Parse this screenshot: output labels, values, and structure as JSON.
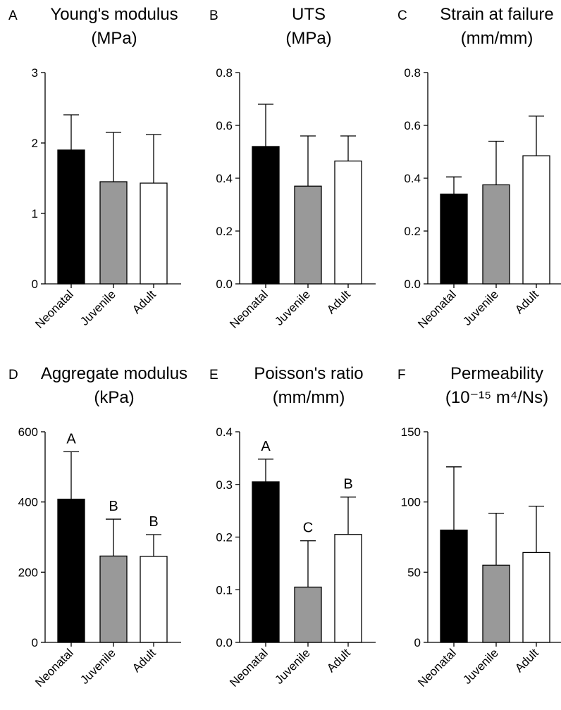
{
  "chart_data": [
    {
      "type": "bar",
      "panel": "A",
      "title": [
        "Young's modulus",
        "(MPa)"
      ],
      "categories": [
        "Neonatal",
        "Juvenile",
        "Adult"
      ],
      "values": [
        1.9,
        1.45,
        1.43
      ],
      "error": [
        0.5,
        0.7,
        0.69
      ],
      "ylim": [
        0,
        3
      ],
      "yticks": [
        0,
        1,
        2,
        3
      ],
      "ytick_labels": [
        "0",
        "1",
        "2",
        "3"
      ],
      "colors": [
        "#000000",
        "#999999",
        "#ffffff"
      ]
    },
    {
      "type": "bar",
      "panel": "B",
      "title": [
        "UTS",
        "(MPa)"
      ],
      "categories": [
        "Neonatal",
        "Juvenile",
        "Adult"
      ],
      "values": [
        0.52,
        0.37,
        0.465
      ],
      "error": [
        0.16,
        0.19,
        0.095
      ],
      "ylim": [
        0,
        0.8
      ],
      "yticks": [
        0,
        0.2,
        0.4,
        0.6,
        0.8
      ],
      "ytick_labels": [
        "0.0",
        "0.2",
        "0.4",
        "0.6",
        "0.8"
      ],
      "colors": [
        "#000000",
        "#999999",
        "#ffffff"
      ]
    },
    {
      "type": "bar",
      "panel": "C",
      "title": [
        "Strain at failure",
        "(mm/mm)"
      ],
      "categories": [
        "Neonatal",
        "Juvenile",
        "Adult"
      ],
      "values": [
        0.34,
        0.375,
        0.485
      ],
      "error": [
        0.065,
        0.165,
        0.15
      ],
      "ylim": [
        0,
        0.8
      ],
      "yticks": [
        0,
        0.2,
        0.4,
        0.6,
        0.8
      ],
      "ytick_labels": [
        "0.0",
        "0.2",
        "0.4",
        "0.6",
        "0.8"
      ],
      "colors": [
        "#000000",
        "#999999",
        "#ffffff"
      ]
    },
    {
      "type": "bar",
      "panel": "D",
      "title": [
        "Aggregate modulus",
        "(kPa)"
      ],
      "categories": [
        "Neonatal",
        "Juvenile",
        "Adult"
      ],
      "values": [
        408,
        246,
        245
      ],
      "error": [
        135,
        105,
        62
      ],
      "ylim": [
        0,
        600
      ],
      "yticks": [
        0,
        200,
        400,
        600
      ],
      "ytick_labels": [
        "0",
        "200",
        "400",
        "600"
      ],
      "colors": [
        "#000000",
        "#999999",
        "#ffffff"
      ],
      "sig_labels": [
        "A",
        "B",
        "B"
      ]
    },
    {
      "type": "bar",
      "panel": "E",
      "title": [
        "Poisson's ratio",
        "(mm/mm)"
      ],
      "categories": [
        "Neonatal",
        "Juvenile",
        "Adult"
      ],
      "values": [
        0.305,
        0.105,
        0.205
      ],
      "error": [
        0.043,
        0.088,
        0.071
      ],
      "ylim": [
        0,
        0.4
      ],
      "yticks": [
        0,
        0.1,
        0.2,
        0.3,
        0.4
      ],
      "ytick_labels": [
        "0.0",
        "0.1",
        "0.2",
        "0.3",
        "0.4"
      ],
      "colors": [
        "#000000",
        "#999999",
        "#ffffff"
      ],
      "sig_labels": [
        "A",
        "C",
        "B"
      ]
    },
    {
      "type": "bar",
      "panel": "F",
      "title": [
        "Permeability",
        "(10⁻¹⁵ m⁴/Ns)"
      ],
      "categories": [
        "Neonatal",
        "Juvenile",
        "Adult"
      ],
      "values": [
        80,
        55,
        64
      ],
      "error": [
        45,
        37,
        33
      ],
      "ylim": [
        0,
        150
      ],
      "yticks": [
        0,
        50,
        100,
        150
      ],
      "ytick_labels": [
        "0",
        "50",
        "100",
        "150"
      ],
      "colors": [
        "#000000",
        "#999999",
        "#ffffff"
      ]
    }
  ]
}
